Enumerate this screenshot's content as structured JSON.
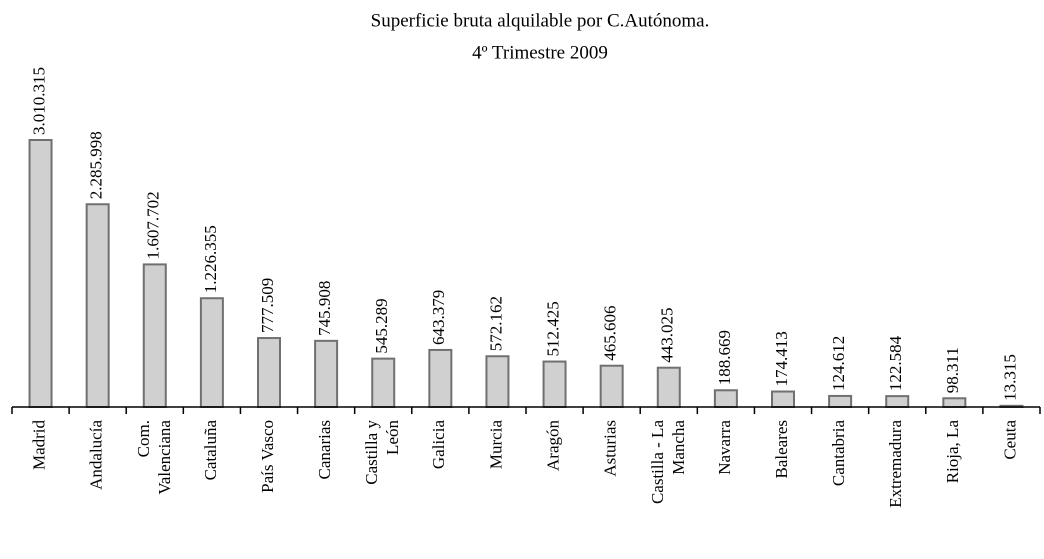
{
  "chart_data": {
    "type": "bar",
    "title": [
      "Superficie bruta alquilable por C.Autónoma.",
      "4º Trimestre 2009"
    ],
    "categories": [
      "Madrid",
      "Andalucía",
      "Com.\nValenciana",
      "Cataluña",
      "País Vasco",
      "Canarias",
      "Castilla y\nLeón",
      "Galicia",
      "Murcia",
      "Aragón",
      "Asturias",
      "Castilla - La\nMancha",
      "Navarra",
      "Baleares",
      "Cantabria",
      "Extremadura",
      "Rioja, La",
      "Ceuta"
    ],
    "values": [
      3010315,
      2285998,
      1607702,
      1226355,
      777509,
      745908,
      545289,
      643379,
      572162,
      512425,
      465606,
      443025,
      188669,
      174413,
      124612,
      122584,
      98311,
      13315
    ],
    "value_labels": [
      "3.010.315",
      "2.285.998",
      "1.607.702",
      "1.226.355",
      "777.509",
      "745.908",
      "545.289",
      "643.379",
      "572.162",
      "512.425",
      "465.606",
      "443.025",
      "188.669",
      "174.413",
      "124.612",
      "122.584",
      "98.311",
      "13.315"
    ],
    "color": "#d0d0d0"
  }
}
